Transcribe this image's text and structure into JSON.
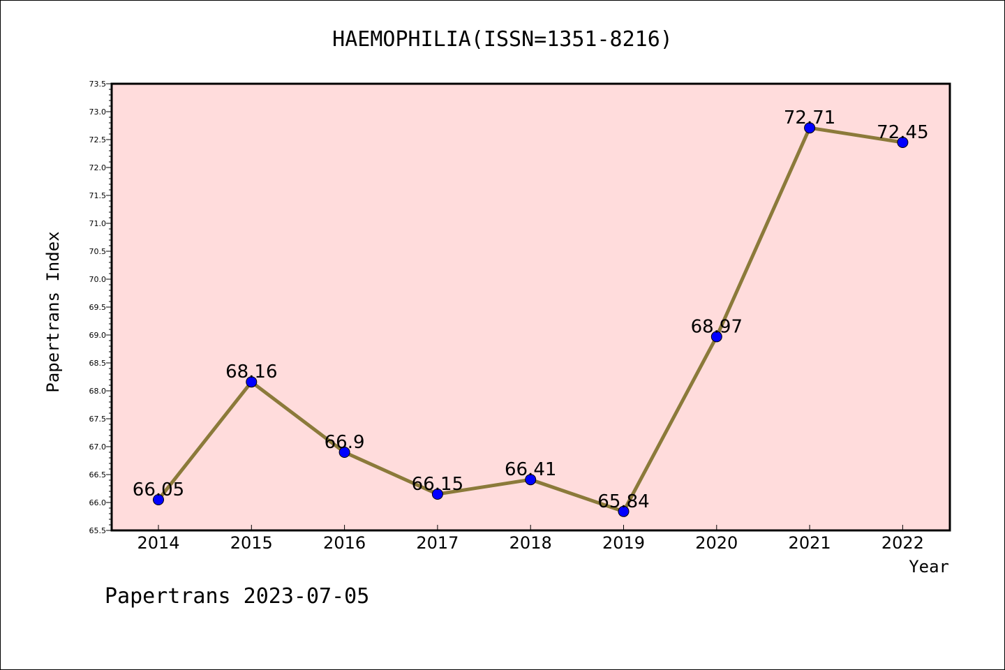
{
  "chart_data": {
    "type": "line",
    "title": "HAEMOPHILIA(ISSN=1351-8216)",
    "xlabel": "Year",
    "ylabel": "Papertrans Index",
    "categories": [
      "2014",
      "2015",
      "2016",
      "2017",
      "2018",
      "2019",
      "2020",
      "2021",
      "2022"
    ],
    "values": [
      66.05,
      68.16,
      66.9,
      66.15,
      66.41,
      65.84,
      68.97,
      72.71,
      72.45
    ],
    "data_labels": [
      "66.05",
      "68.16",
      "66.9",
      "66.15",
      "66.41",
      "65.84",
      "68.97",
      "72.71",
      "72.45"
    ],
    "ylim": [
      65.5,
      73.5
    ],
    "yticks": [
      "65.5",
      "66.0",
      "66.5",
      "67.0",
      "67.5",
      "68.0",
      "68.5",
      "69.0",
      "69.5",
      "70.0",
      "70.5",
      "71.0",
      "71.5",
      "72.0",
      "72.5",
      "73.0",
      "73.5"
    ],
    "grid": false,
    "line_color": "#8b7a3a",
    "marker_color": "#0000ff",
    "plot_background": "#ffdcdc"
  },
  "footer": "Papertrans 2023-07-05"
}
